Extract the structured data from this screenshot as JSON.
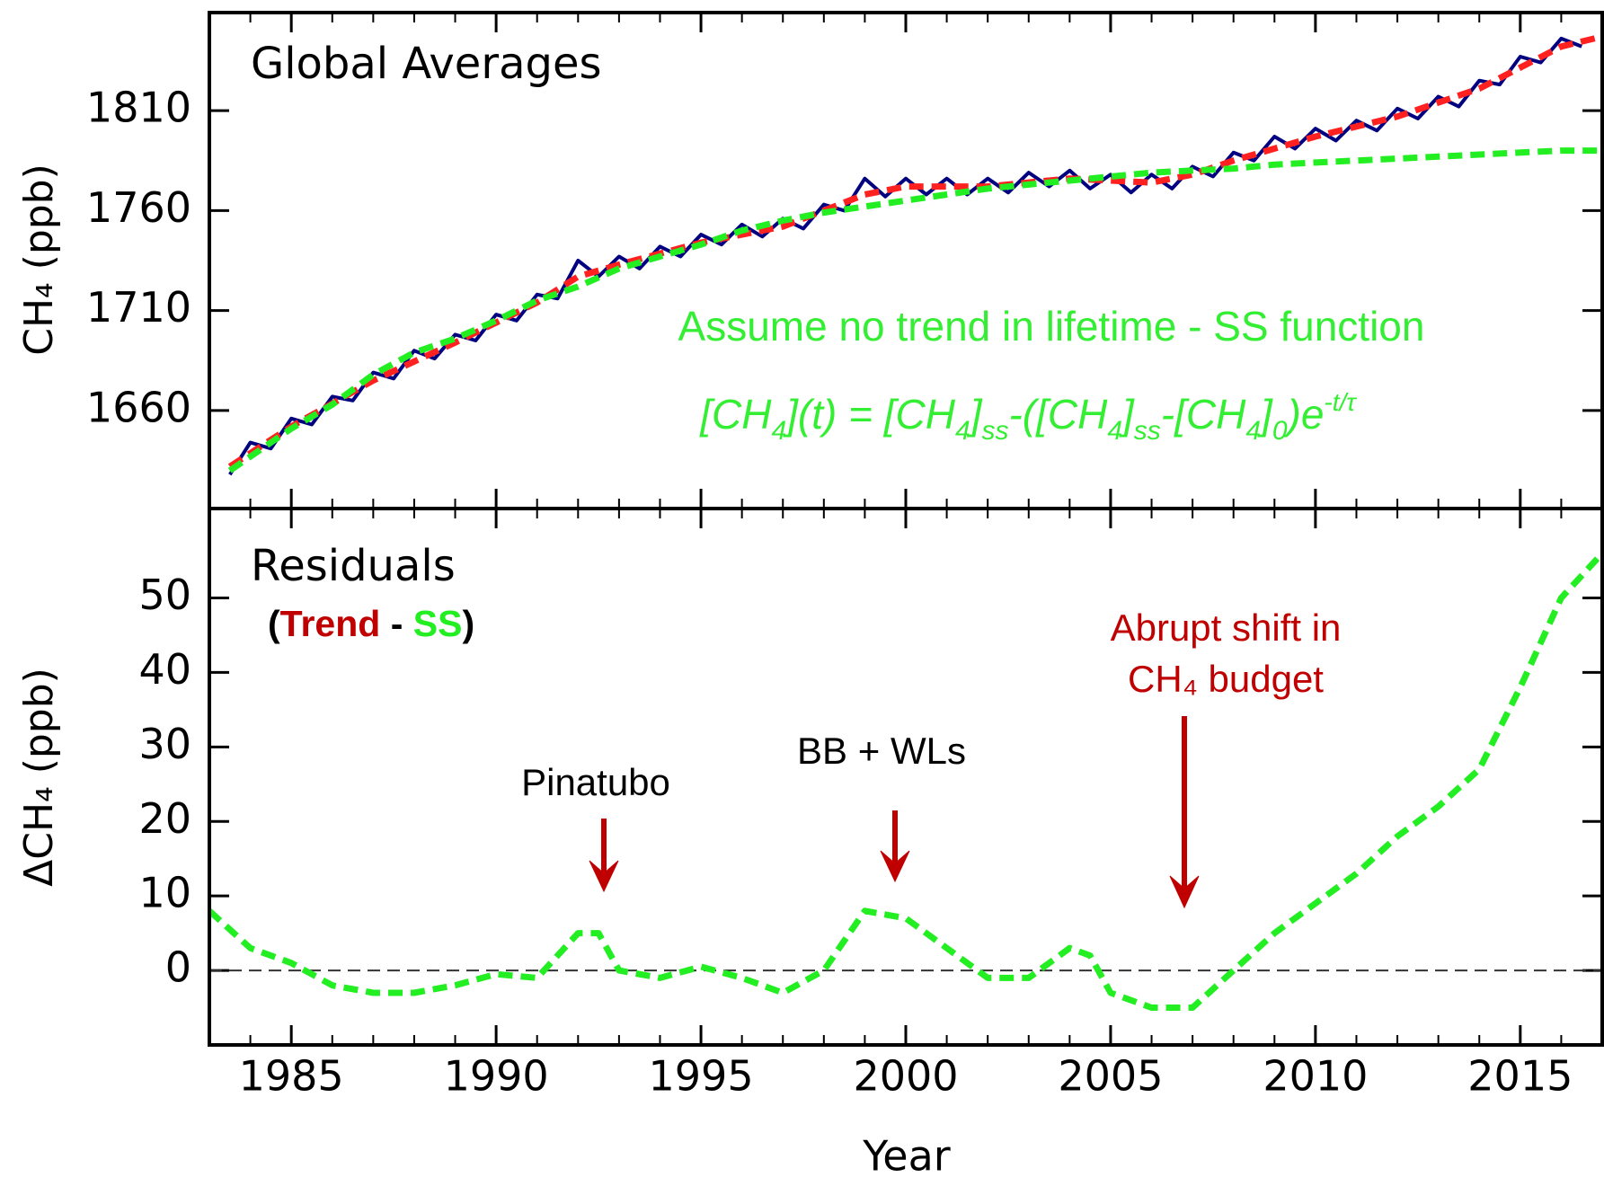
{
  "chart_data": [
    {
      "type": "line",
      "title": "Global Averages",
      "ylabel": "CH₄ (ppb)",
      "xlim": [
        1983,
        2017
      ],
      "ylim": [
        1611,
        1859
      ],
      "yticks": [
        1660,
        1710,
        1760,
        1810
      ],
      "annotation": "Assume no trend in lifetime - SS function",
      "annotation_color": "#33ee33",
      "formula_parts": [
        {
          "text": "[CH"
        },
        {
          "text": "4",
          "sub": true
        },
        {
          "text": "](t) = [CH"
        },
        {
          "text": "4",
          "sub": true
        },
        {
          "text": "]"
        },
        {
          "text": "ss",
          "sub": true
        },
        {
          "text": "-([CH"
        },
        {
          "text": "4",
          "sub": true
        },
        {
          "text": "]"
        },
        {
          "text": "ss",
          "sub": true
        },
        {
          "text": "-[CH"
        },
        {
          "text": "4",
          "sub": true
        },
        {
          "text": "]"
        },
        {
          "text": "0",
          "sub": true
        },
        {
          "text": ")e"
        },
        {
          "text": "-t/τ",
          "sup": true
        }
      ],
      "series": [
        {
          "color": "#000080",
          "dash": false,
          "x": [
            1983.5,
            1984,
            1984.5,
            1985,
            1985.5,
            1986,
            1986.5,
            1987,
            1987.5,
            1988,
            1988.5,
            1989,
            1989.5,
            1990,
            1990.5,
            1991,
            1991.5,
            1992,
            1992.5,
            1993,
            1993.5,
            1994,
            1994.5,
            1995,
            1995.5,
            1996,
            1996.5,
            1997,
            1997.5,
            1998,
            1998.5,
            1999,
            1999.5,
            2000,
            2000.5,
            2001,
            2001.5,
            2002,
            2002.5,
            2003,
            2003.5,
            2004,
            2004.5,
            2005,
            2005.5,
            2006,
            2006.5,
            2007,
            2007.5,
            2008,
            2008.5,
            2009,
            2009.5,
            2010,
            2010.5,
            2011,
            2011.5,
            2012,
            2012.5,
            2013,
            2013.5,
            2014,
            2014.5,
            2015,
            2015.5,
            2016,
            2016.5
          ],
          "values": [
            1628,
            1644,
            1641,
            1656,
            1653,
            1667,
            1665,
            1679,
            1676,
            1690,
            1686,
            1698,
            1695,
            1708,
            1705,
            1718,
            1716,
            1735,
            1727,
            1737,
            1731,
            1742,
            1737,
            1748,
            1743,
            1753,
            1747,
            1756,
            1751,
            1763,
            1760,
            1776,
            1767,
            1776,
            1768,
            1776,
            1768,
            1776,
            1769,
            1779,
            1772,
            1780,
            1771,
            1778,
            1769,
            1778,
            1771,
            1782,
            1777,
            1789,
            1785,
            1797,
            1791,
            1801,
            1795,
            1805,
            1800,
            1811,
            1806,
            1817,
            1812,
            1825,
            1823,
            1837,
            1834,
            1846,
            1842
          ]
        },
        {
          "color": "#ff2020",
          "dash": true,
          "x": [
            1983.5,
            1985,
            1987,
            1989,
            1991,
            1992,
            1993,
            1995,
            1997,
            1999,
            2000,
            2002,
            2004,
            2006,
            2007,
            2008,
            2010,
            2012,
            2014,
            2016,
            2017
          ],
          "values": [
            1632,
            1652,
            1675,
            1694,
            1714,
            1727,
            1733,
            1744,
            1752,
            1768,
            1772,
            1772,
            1776,
            1774,
            1778,
            1785,
            1797,
            1807,
            1821,
            1842,
            1847
          ]
        },
        {
          "color": "#22ee22",
          "dash": true,
          "x": [
            1983.5,
            1985,
            1986,
            1987,
            1988,
            1989,
            1990,
            1991,
            1992,
            1993,
            1994,
            1995,
            1996,
            1997,
            1998,
            1999,
            2000,
            2001,
            2002,
            2003,
            2004,
            2005,
            2006,
            2007,
            2008,
            2009,
            2010,
            2011,
            2012,
            2013,
            2014,
            2015,
            2016,
            2017
          ],
          "values": [
            1630,
            1651,
            1663,
            1678,
            1689,
            1696,
            1705,
            1715,
            1722,
            1731,
            1737,
            1743,
            1750,
            1755,
            1759,
            1762,
            1765,
            1768,
            1771,
            1773,
            1775,
            1777,
            1779,
            1780,
            1781,
            1783,
            1784,
            1785,
            1786,
            1787,
            1788,
            1789,
            1790,
            1790
          ]
        }
      ]
    },
    {
      "type": "line",
      "title": "Residuals",
      "ylabel": "ΔCH₄ (ppb)",
      "xlabel": "Year",
      "xlim": [
        1983,
        2017
      ],
      "ylim": [
        -10,
        62
      ],
      "xticks": [
        1985,
        1990,
        1995,
        2000,
        2005,
        2010,
        2015
      ],
      "yticks": [
        0,
        10,
        20,
        30,
        40,
        50
      ],
      "reference_line": 0,
      "legend_parts": [
        {
          "text": "(",
          "color": "#000000"
        },
        {
          "text": "Trend",
          "color": "#c00000"
        },
        {
          "text": " - ",
          "color": "#000000"
        },
        {
          "text": "SS",
          "color": "#22ee22"
        },
        {
          "text": ")",
          "color": "#000000"
        }
      ],
      "annotations": [
        "Pinatubo",
        "BB + WLs",
        "Abrupt shift in",
        "CH₄ budget"
      ],
      "annotation_color": "#c00000",
      "series": [
        {
          "color": "#22ee22",
          "dash": true,
          "x": [
            1983,
            1984,
            1985,
            1986,
            1987,
            1988,
            1989,
            1990,
            1991,
            1992,
            1992.5,
            1993,
            1994,
            1995,
            1996,
            1997,
            1998,
            1999,
            2000,
            2001,
            2002,
            2003,
            2004,
            2004.5,
            2005,
            2006,
            2007,
            2008,
            2009,
            2010,
            2011,
            2012,
            2013,
            2014,
            2015,
            2016,
            2017
          ],
          "values": [
            8,
            3,
            1,
            -2,
            -3,
            -3,
            -2,
            -0.5,
            -1,
            5,
            5,
            0,
            -1,
            0.5,
            -1,
            -3,
            0,
            8,
            7,
            3,
            -1,
            -1,
            3,
            2,
            -3,
            -5,
            -5,
            0,
            5,
            9,
            13,
            18,
            22,
            27,
            38,
            50,
            56
          ]
        }
      ]
    }
  ]
}
